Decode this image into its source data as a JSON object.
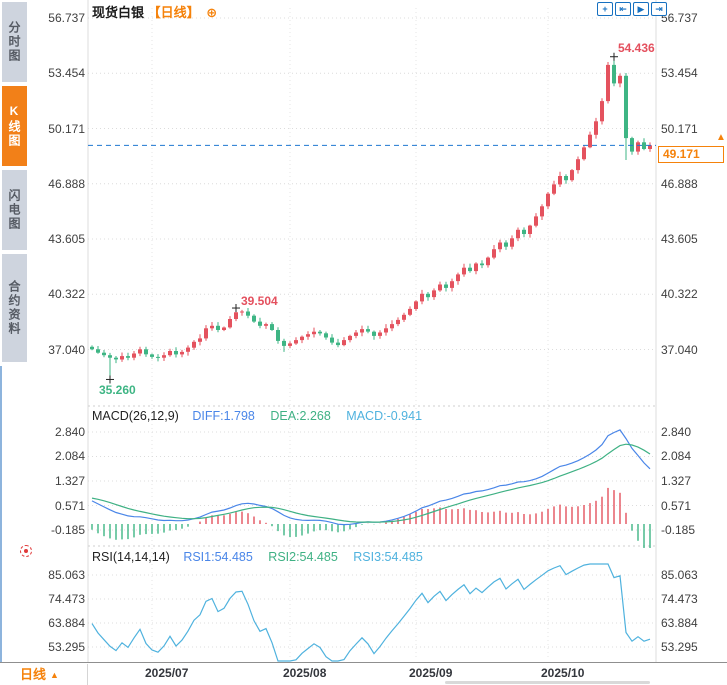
{
  "sidebar": {
    "items": [
      {
        "label": "分时图",
        "active": false
      },
      {
        "label": "K线图",
        "active": true
      },
      {
        "label": "闪电图",
        "active": false
      },
      {
        "label": "合约资料",
        "active": false
      }
    ]
  },
  "header": {
    "title": "现货白银",
    "period_tag": "【日线】",
    "add_icon": "⊕"
  },
  "toolbar": {
    "icons": [
      {
        "name": "move-tool-icon",
        "glyph": "+"
      },
      {
        "name": "zoom-x-axis-icon",
        "glyph": "⇤"
      },
      {
        "name": "autoscroll-icon",
        "glyph": "▶"
      },
      {
        "name": "jump-latest-icon",
        "glyph": "⇥"
      }
    ]
  },
  "main_chart": {
    "last_price_label": "49.171",
    "price_arrow": "▲",
    "annotations": {
      "high": "54.436",
      "pullback_high": "39.504",
      "low": "35.260"
    }
  },
  "macd_panel": {
    "name": "MACD(26,12,9)",
    "diff": "DIFF:1.798",
    "dea": "DEA:2.268",
    "macd": "MACD:-0.941"
  },
  "rsi_panel": {
    "name": "RSI(14,14,14)",
    "rsi1": "RSI1:54.485",
    "rsi2": "RSI2:54.485",
    "rsi3": "RSI3:54.485"
  },
  "bottom_bar": {
    "period_label": "日线",
    "arrow": "▲"
  },
  "colors": {
    "up": "#e4525e",
    "down": "#3eb584",
    "accent_orange": "#f5820b",
    "last_price_line": "#1f78d1",
    "diff_line": "#4a86e8",
    "dea_line": "#3fb184",
    "rsi_line": "#4fb2de",
    "grid": "#dcdcdc",
    "icon_blue": "#1670c0",
    "marker_cross": "#222222"
  },
  "chart_data": {
    "type": "candlestick",
    "symbol": "现货白银",
    "interval": "日线",
    "price_axis_labels": [
      56.737,
      53.454,
      50.171,
      46.888,
      43.605,
      40.322,
      37.04
    ],
    "last_price": 49.171,
    "marked_high": 54.436,
    "marked_pullback_high": 39.504,
    "marked_low": 35.26,
    "first_open": 37.2,
    "closes": [
      37.05,
      36.85,
      36.7,
      36.55,
      36.45,
      36.65,
      36.55,
      36.8,
      37.05,
      36.75,
      36.6,
      36.55,
      36.7,
      36.95,
      36.75,
      36.9,
      37.15,
      37.5,
      37.7,
      38.3,
      38.45,
      38.2,
      38.35,
      38.85,
      39.25,
      39.3,
      39.05,
      38.7,
      38.45,
      38.55,
      38.2,
      37.55,
      37.25,
      37.4,
      37.6,
      37.8,
      37.95,
      38.1,
      38.0,
      37.75,
      37.45,
      37.3,
      37.6,
      37.85,
      38.05,
      38.25,
      38.1,
      37.85,
      38.05,
      38.3,
      38.55,
      38.8,
      39.1,
      39.45,
      39.9,
      40.35,
      40.15,
      40.55,
      40.9,
      40.7,
      41.1,
      41.5,
      41.9,
      41.7,
      42.15,
      42.05,
      42.5,
      43.0,
      43.4,
      43.15,
      43.65,
      44.15,
      43.9,
      44.4,
      44.95,
      45.55,
      46.3,
      46.85,
      47.35,
      47.1,
      47.7,
      48.35,
      49.05,
      49.8,
      50.6,
      51.8,
      53.95,
      52.85,
      53.3,
      49.6,
      48.8,
      49.35,
      48.95,
      49.171
    ],
    "wick_overrides": {
      "3": {
        "low": 35.26
      },
      "24": {
        "high": 39.504
      },
      "32": {
        "low": 36.9
      },
      "87": {
        "high": 54.436
      },
      "89": {
        "low": 48.3
      }
    },
    "annotation_indices": {
      "low": 3,
      "pullback_high": 24,
      "high": 87
    },
    "month_ticks": [
      {
        "label": "2025/07",
        "index": 10
      },
      {
        "label": "2025/08",
        "index": 33
      },
      {
        "label": "2025/09",
        "index": 54
      },
      {
        "label": "2025/10",
        "index": 76
      }
    ],
    "macd": {
      "params": [
        26,
        12,
        9
      ],
      "axis_labels": [
        2.84,
        2.084,
        1.327,
        0.571,
        -0.185
      ],
      "diff": 1.798,
      "dea": 2.268,
      "macd": -0.941
    },
    "rsi": {
      "params": [
        14,
        14,
        14
      ],
      "axis_labels": [
        85.063,
        74.473,
        63.884,
        53.295
      ],
      "rsi1": 54.485,
      "rsi2": 54.485,
      "rsi3": 54.485
    }
  }
}
